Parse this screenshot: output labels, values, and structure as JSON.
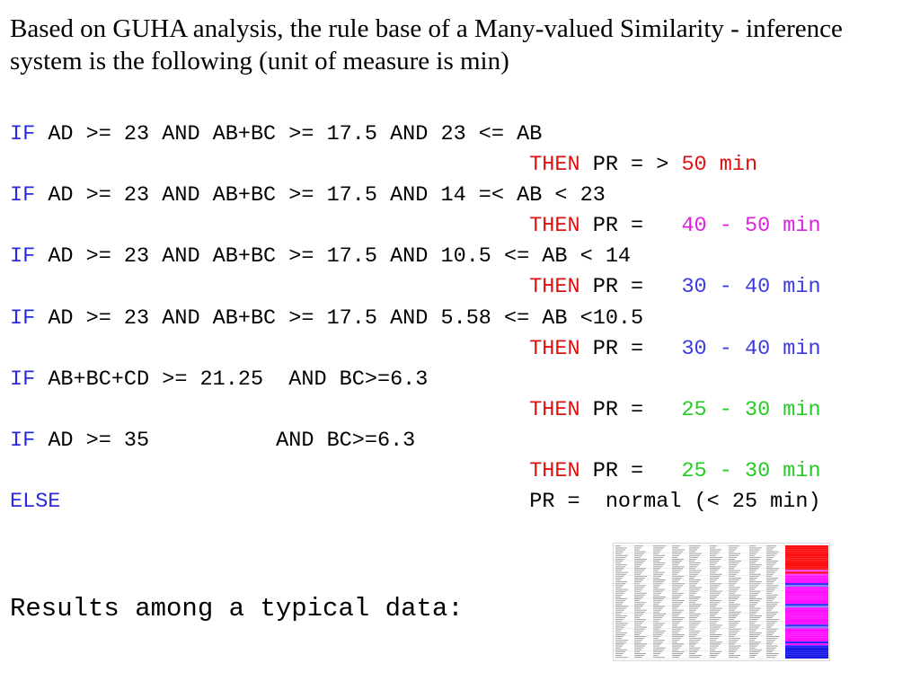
{
  "intro_text": "Based on GUHA analysis, the rule base of a Many-valued Similarity - inference system is the following (unit of measure is min)",
  "rules": [
    {
      "if": "IF",
      "cond": " AD >= 23 AND AB+BC >= 17.5 AND 23 <= AB",
      "then": "THEN",
      "pr": " PR = > ",
      "value": "50 min",
      "color": "#e01010"
    },
    {
      "if": "IF",
      "cond": " AD >= 23 AND AB+BC >= 17.5 AND 14 =< AB < 23",
      "then": "THEN",
      "pr": " PR =   ",
      "value": "40 - 50 min",
      "color": "#e020e0"
    },
    {
      "if": "IF",
      "cond": " AD >= 23 AND AB+BC >= 17.5 AND 10.5 <= AB < 14",
      "then": "THEN",
      "pr": " PR =   ",
      "value": "30 - 40 min",
      "color": "#3a3ae0"
    },
    {
      "if": "IF",
      "cond": " AD >= 23 AND AB+BC >= 17.5 AND 5.58 <= AB <10.5",
      "then": "THEN",
      "pr": " PR =   ",
      "value": "30 - 40 min",
      "color": "#3a3ae0"
    },
    {
      "if": "IF",
      "cond": " AB+BC+CD >= 21.25  AND BC>=6.3",
      "then": "THEN",
      "pr": " PR =   ",
      "value": "25 - 30 min",
      "color": "#22cc22"
    },
    {
      "if": "IF",
      "cond": " AD >= 35          AND BC>=6.3",
      "then": "THEN",
      "pr": " PR =   ",
      "value": "25 - 30 min",
      "color": "#22cc22"
    }
  ],
  "else_rule": {
    "keyword": "ELSE",
    "text": "PR =  normal (< 25 min)"
  },
  "results_label": "Results among a typical data:",
  "colors": {
    "keyword": "#2a2ae0",
    "then": "#e01010"
  },
  "thumbnail": {
    "icon": "data-table-image"
  }
}
